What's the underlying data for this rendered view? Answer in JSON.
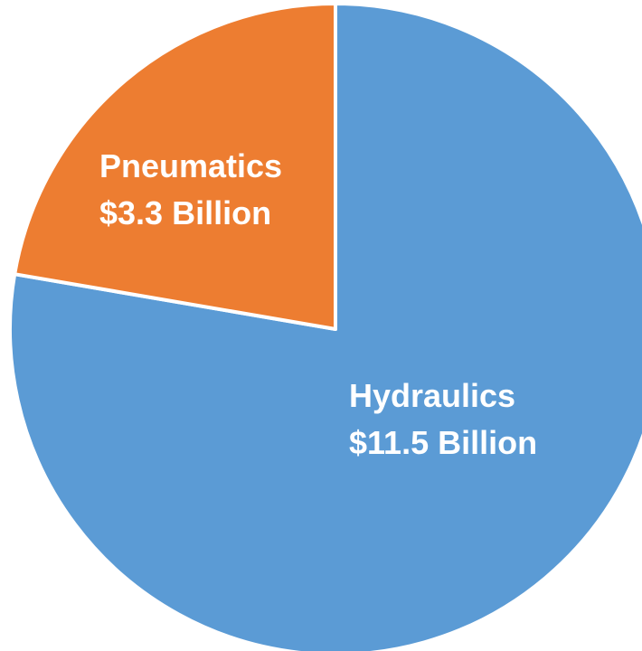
{
  "chart_data": {
    "type": "pie",
    "slices": [
      {
        "category": "Hydraulics",
        "value_text": "$11.5 Billion",
        "value": 11.5,
        "color": "#5b9bd5"
      },
      {
        "category": "Pneumatics",
        "value_text": "$3.3 Billion",
        "value": 3.3,
        "color": "#ed7d31"
      }
    ],
    "start": "12 o'clock",
    "direction": "clockwise",
    "legend": "none",
    "unit": "Billion $"
  }
}
